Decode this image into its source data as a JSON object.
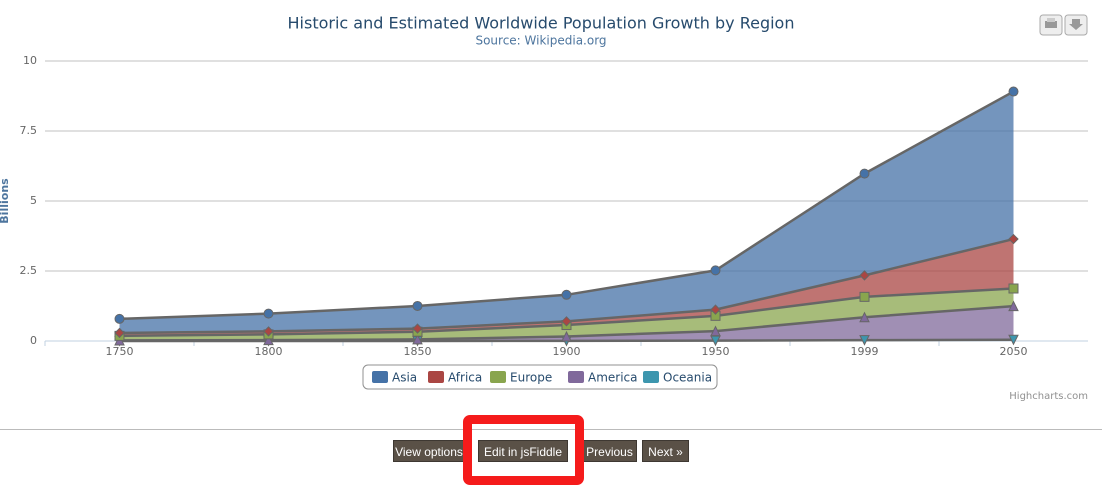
{
  "chart_data": {
    "type": "area",
    "stacking": "normal",
    "title": "Historic and Estimated Worldwide Population Growth by Region",
    "subtitle": "Source: Wikipedia.org",
    "y_axis_title": "Billions",
    "categories": [
      "1750",
      "1800",
      "1850",
      "1900",
      "1950",
      "1999",
      "2050"
    ],
    "series": [
      {
        "name": "Asia",
        "color": "#4572A7",
        "marker": "circle",
        "values": [
          0.502,
          0.635,
          0.809,
          0.947,
          1.402,
          3.634,
          5.268
        ]
      },
      {
        "name": "Africa",
        "color": "#AA4643",
        "marker": "diamond",
        "values": [
          0.106,
          0.107,
          0.111,
          0.133,
          0.221,
          0.767,
          1.766
        ]
      },
      {
        "name": "Europe",
        "color": "#89A54E",
        "marker": "square",
        "values": [
          0.163,
          0.203,
          0.276,
          0.408,
          0.547,
          0.729,
          0.628
        ]
      },
      {
        "name": "America",
        "color": "#80699B",
        "marker": "triangle",
        "values": [
          0.018,
          0.031,
          0.054,
          0.156,
          0.339,
          0.818,
          1.201
        ]
      },
      {
        "name": "Oceania",
        "color": "#3D96AE",
        "marker": "triangle-down",
        "values": [
          0.002,
          0.002,
          0.002,
          0.006,
          0.013,
          0.03,
          0.046
        ]
      }
    ],
    "ylim": [
      0,
      10
    ],
    "yticks": [
      0,
      2.5,
      5,
      7.5,
      10
    ],
    "grid": true,
    "legend": "bottom",
    "credits": "Highcharts.com"
  },
  "buttons": [
    "View options",
    "Edit in jsFiddle",
    "Previous",
    "Next »"
  ],
  "highlighted_button": 1
}
